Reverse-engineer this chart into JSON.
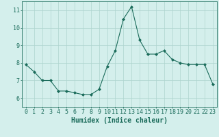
{
  "x": [
    0,
    1,
    2,
    3,
    4,
    5,
    6,
    7,
    8,
    9,
    10,
    11,
    12,
    13,
    14,
    15,
    16,
    17,
    18,
    19,
    20,
    21,
    22,
    23
  ],
  "y": [
    7.9,
    7.5,
    7.0,
    7.0,
    6.4,
    6.4,
    6.3,
    6.2,
    6.2,
    6.5,
    7.8,
    8.7,
    10.5,
    11.2,
    9.3,
    8.5,
    8.5,
    8.7,
    8.2,
    8.0,
    7.9,
    7.9,
    7.9,
    6.8
  ],
  "line_color": "#1a6b5a",
  "marker": "D",
  "marker_size": 2,
  "bg_color": "#d4efec",
  "grid_color": "#aed4cf",
  "xlabel": "Humidex (Indice chaleur)",
  "xlim": [
    -0.5,
    23.5
  ],
  "ylim": [
    5.5,
    11.5
  ],
  "yticks": [
    6,
    7,
    8,
    9,
    10,
    11
  ],
  "xticks": [
    0,
    1,
    2,
    3,
    4,
    5,
    6,
    7,
    8,
    9,
    10,
    11,
    12,
    13,
    14,
    15,
    16,
    17,
    18,
    19,
    20,
    21,
    22,
    23
  ],
  "tick_color": "#1a6b5a",
  "label_fontsize": 7,
  "tick_fontsize": 6
}
